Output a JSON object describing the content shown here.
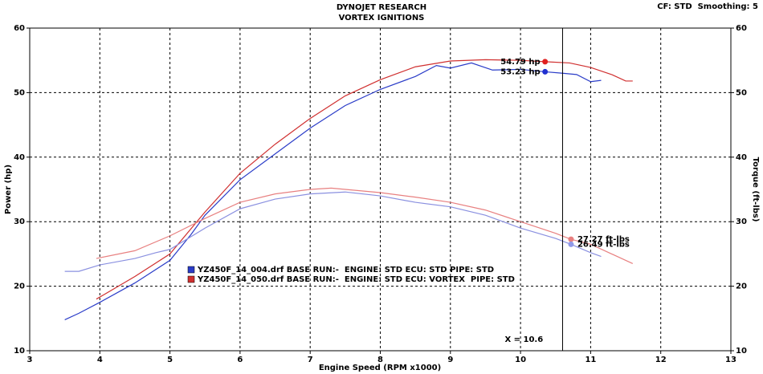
{
  "chart_data": {
    "type": "line",
    "title": "DYNOJET RESEARCH",
    "subtitle": "VORTEX IGNITIONS",
    "note": "CF: STD  Smoothing: 5",
    "x_label": "Engine Speed (RPM x1000)",
    "y_label": "Power (hp)",
    "y2_label": "Torque (ft-lbs)",
    "xlim": [
      3,
      13
    ],
    "xticks": [
      3,
      4,
      5,
      6,
      7,
      8,
      9,
      10,
      11,
      12,
      13
    ],
    "ylim": [
      10,
      60
    ],
    "yticks": [
      10,
      20,
      30,
      40,
      50,
      60
    ],
    "y2lim": [
      10,
      60
    ],
    "y2ticks": [
      10,
      20,
      30,
      40,
      50,
      60
    ],
    "grid": true,
    "series": [
      {
        "name": "YZ450F_14_004.drf BASE RUN:-  ENGINE: STD ECU: STD PIPE: STD",
        "color": "#2a3cc8",
        "x": [
          3.5,
          3.7,
          4.0,
          4.5,
          5.0,
          5.3,
          5.5,
          6.0,
          6.5,
          7.0,
          7.5,
          8.0,
          8.5,
          8.8,
          9.0,
          9.3,
          9.6,
          10.0,
          10.35,
          10.6,
          10.8,
          11.0,
          11.15
        ],
        "values": [
          14.8,
          15.8,
          17.5,
          20.5,
          24,
          28,
          31,
          36.5,
          40.5,
          44.5,
          48,
          50.5,
          52.5,
          54.2,
          53.8,
          54.6,
          53.5,
          53.6,
          53.23,
          53,
          52.8,
          51.7,
          51.9
        ]
      },
      {
        "name": "YZ450F_14_050.drf BASE RUN:-  ENGINE: STD ECU: VORTEX  PIPE: STD",
        "color": "#d03030",
        "x": [
          3.95,
          4.5,
          5.0,
          5.5,
          6.0,
          6.5,
          7.0,
          7.5,
          8.0,
          8.5,
          9.0,
          9.5,
          10.0,
          10.35,
          10.7,
          11.0,
          11.3,
          11.5,
          11.6
        ],
        "values": [
          18,
          21.5,
          25,
          31.5,
          37.5,
          42,
          46,
          49.5,
          52,
          54,
          54.9,
          55.1,
          55,
          54.79,
          54.6,
          53.9,
          52.8,
          51.8,
          51.8
        ]
      },
      {
        "color": "#8a90e0",
        "axis": "y2",
        "x": [
          3.5,
          3.7,
          4.0,
          4.5,
          4.8,
          5.0,
          5.5,
          6.0,
          6.5,
          7.0,
          7.5,
          8.0,
          8.5,
          9.0,
          9.5,
          10.0,
          10.5,
          10.72,
          11.0,
          11.15
        ],
        "values": [
          22.3,
          22.3,
          23.3,
          24.3,
          25.2,
          25.7,
          29,
          32,
          33.5,
          34.3,
          34.6,
          34,
          33,
          32.3,
          31,
          29,
          27.4,
          26.49,
          25.2,
          24.6
        ]
      },
      {
        "color": "#e88080",
        "axis": "y2",
        "x": [
          3.95,
          4.5,
          5.0,
          5.5,
          6.0,
          6.5,
          7.0,
          7.3,
          8.0,
          8.5,
          9.0,
          9.5,
          10.0,
          10.5,
          10.72,
          11.0,
          11.3,
          11.6
        ],
        "values": [
          24.3,
          25.5,
          27.8,
          30.5,
          33,
          34.3,
          35,
          35.2,
          34.5,
          33.8,
          33,
          31.8,
          30,
          28.2,
          27.27,
          26.5,
          25,
          23.5
        ]
      }
    ],
    "annotations": [
      {
        "label": "54.79 hp",
        "x": 10.35,
        "y": 54.79,
        "color": "#e02020"
      },
      {
        "label": "53.23 hp",
        "x": 10.35,
        "y": 53.23,
        "color": "#2030d0"
      },
      {
        "label": "27.27 ft-lbs",
        "x": 10.72,
        "y": 27.27,
        "color": "#e88080",
        "axis": "y2"
      },
      {
        "label": "26.49 ft-lbs",
        "x": 10.72,
        "y": 26.49,
        "color": "#9098e8",
        "axis": "y2"
      }
    ],
    "cursor": {
      "label": "X = 10.6",
      "value": 10.6
    }
  }
}
